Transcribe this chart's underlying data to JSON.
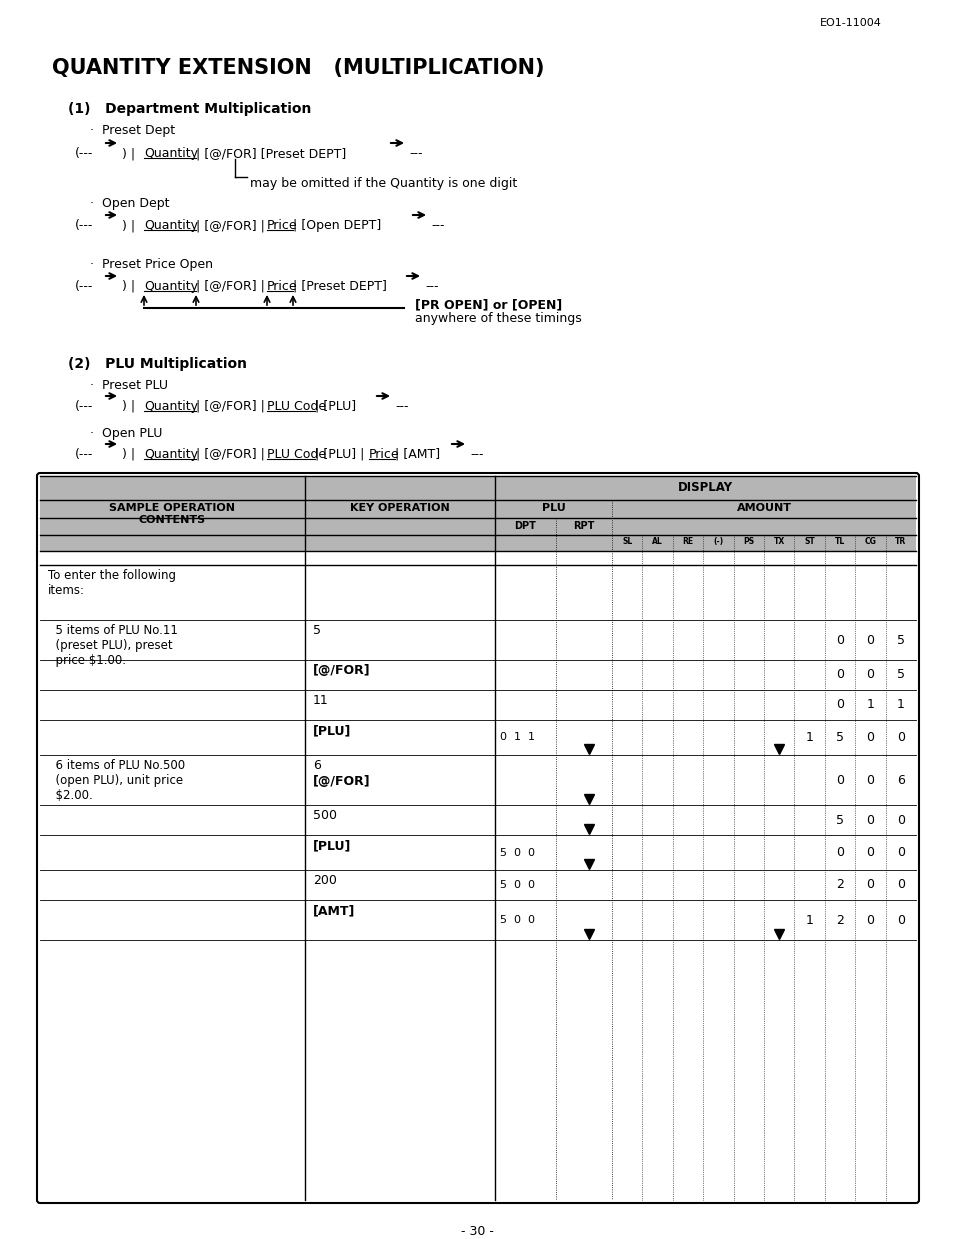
{
  "page_ref": "EO1-11004",
  "title": "QUANTITY EXTENSION   (MULTIPLICATION)",
  "page_num": "- 30 -",
  "bg_color": "#ffffff",
  "section1_title": "(1)   Department Multiplication",
  "section2_title": "(2)   PLU Multiplication",
  "table_header_bg": "#b0b0b0",
  "table_data_bg": "#ffffff"
}
